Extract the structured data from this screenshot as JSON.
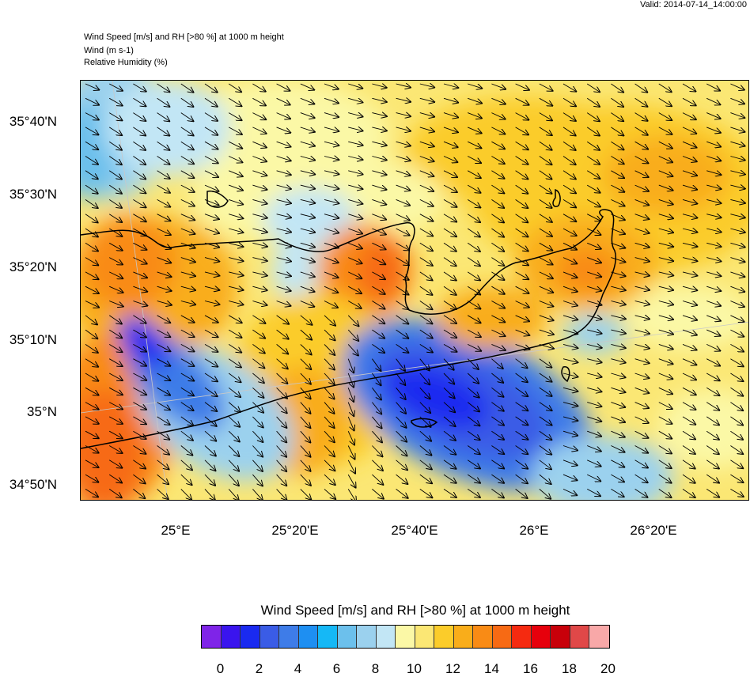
{
  "valid": "Valid: 2014-07-14_14:00:00",
  "header": {
    "line1": "Wind Speed [m/s] and RH [>80 %] at 1000 m height",
    "line2": "Wind   (m s-1)",
    "line3": "Relative Humidity   (%)"
  },
  "lat_labels": [
    "35°40'N",
    "35°30'N",
    "35°20'N",
    "35°10'N",
    "35°N",
    "34°50'N"
  ],
  "lon_labels": [
    "25°E",
    "25°20'E",
    "25°40'E",
    "26°E",
    "26°20'E"
  ],
  "colorbar": {
    "title": "Wind Speed [m/s] and RH [>80 %] at 1000 m height",
    "colors": [
      "#7f24e8",
      "#3a14ee",
      "#1a2af0",
      "#3a5ce6",
      "#3e7ce8",
      "#1e8ff2",
      "#15b8f6",
      "#6cc0ec",
      "#9bd1ee",
      "#c2e6f5",
      "#fbf8a6",
      "#fbe774",
      "#fbcc2a",
      "#f9ad1a",
      "#f98b15",
      "#f76a14",
      "#f52a10",
      "#e6000c",
      "#c8000a",
      "#e04848",
      "#f8a8a8"
    ],
    "ticks": [
      "0",
      "2",
      "4",
      "6",
      "8",
      "10",
      "12",
      "14",
      "16",
      "18",
      "20"
    ]
  }
}
